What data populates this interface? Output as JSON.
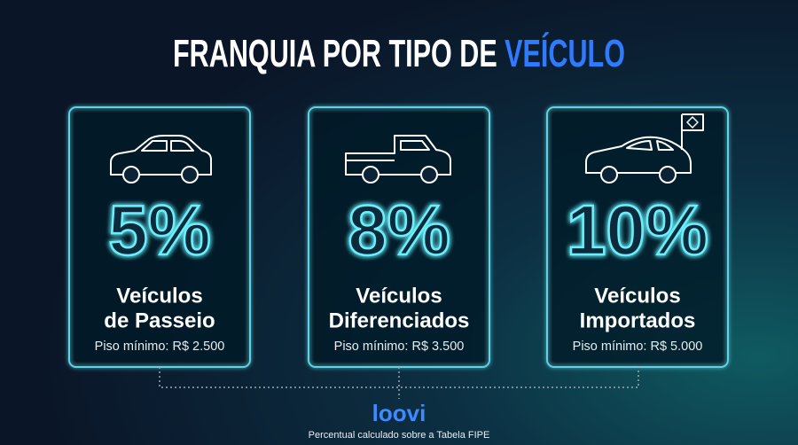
{
  "header": {
    "title": "FRANQUIA POR TIPO DE",
    "title_highlight": "VEÍCULO"
  },
  "cards": [
    {
      "percent": "5%",
      "name": [
        "Veículos",
        "de Passeio"
      ],
      "floor": "Piso mínimo: R$ 2.500"
    },
    {
      "percent": "8%",
      "name": [
        "Veículos",
        "Diferenciados"
      ],
      "floor": "Piso mínimo: R$ 3.500"
    },
    {
      "percent": "10%",
      "name": [
        "Veículos",
        "Importados"
      ],
      "floor": "Piso mínimo: R$ 5.000"
    }
  ],
  "footer": {
    "logo": "loovi",
    "note": "Percentual calculado sobre a Tabela FIPE"
  }
}
